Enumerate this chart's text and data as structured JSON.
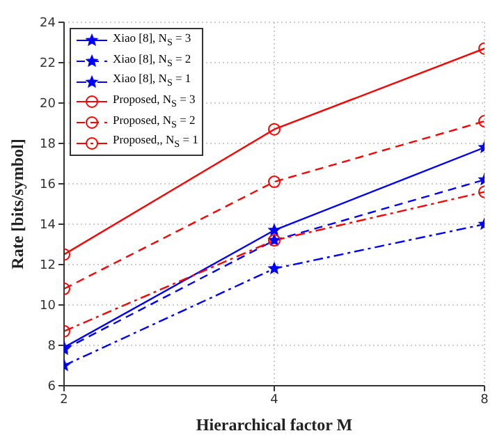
{
  "chart_data": {
    "type": "line",
    "xlabel": "Hierarchical factor M",
    "ylabel": "Rate [bits/symbol]",
    "x": [
      2,
      4,
      8
    ],
    "log": "x",
    "xlim": [
      2,
      8
    ],
    "xticks": [
      2,
      4,
      8
    ],
    "ylim": [
      6,
      24
    ],
    "yticks": [
      6,
      8,
      10,
      12,
      14,
      16,
      18,
      20,
      22,
      24
    ],
    "grid": true,
    "legend": "top left",
    "series": [
      {
        "name": "Xiao [8], N$_{S}$ = 3",
        "color": "#0000ff",
        "values": [
          7.9,
          13.7,
          17.8
        ],
        "marker": "star",
        "line_style": "solid"
      },
      {
        "name": "Xiao [8], N$_{S}$ = 2",
        "color": "#0000ff",
        "values": [
          7.8,
          13.2,
          16.2
        ],
        "marker": "star",
        "line_style": "dashed"
      },
      {
        "name": "Xiao [8], N$_{S}$ = 1",
        "color": "#0000ff",
        "values": [
          7.0,
          11.8,
          14.0
        ],
        "marker": "star",
        "line_style": "dashdot"
      },
      {
        "name": "Proposed, N$_{S}$ = 3",
        "color": "#ff0000",
        "values": [
          12.5,
          18.7,
          22.7
        ],
        "marker": "circle",
        "line_style": "solid"
      },
      {
        "name": "Proposed, N$_{S}$ = 2",
        "color": "#ff0000",
        "values": [
          10.8,
          16.1,
          19.1
        ],
        "marker": "circle",
        "line_style": "dashed"
      },
      {
        "name": "Proposed,, N$_{S}$ = 1",
        "color": "#ff0000",
        "values": [
          8.7,
          13.2,
          15.6
        ],
        "marker": "circle",
        "line_style": "dashdot"
      }
    ]
  }
}
